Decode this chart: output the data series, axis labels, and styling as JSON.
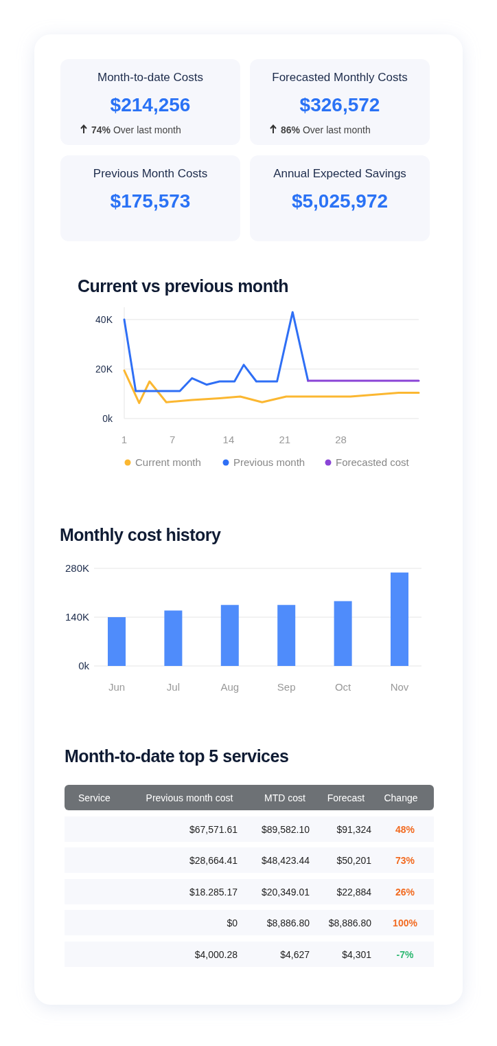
{
  "chart_data": [
    {
      "type": "other",
      "categories": [
        "Month-to-date Costs",
        "Forecasted Monthly Costs",
        "Previous Month Costs",
        "Annual Expected Savings"
      ],
      "value_labels": [
        "$214,256",
        "$326,572",
        "$175,573",
        "$5,025,972"
      ],
      "annotations": [
        "74% Over last month",
        "86% Over last month"
      ]
    },
    {
      "type": "line",
      "title": "Current vs previous month",
      "xlim": [
        1,
        37.7
      ],
      "xticks": [
        1,
        7,
        14,
        21,
        28
      ],
      "ylim": [
        0,
        45
      ],
      "yticks": [
        {
          "value": 0,
          "label": "0k"
        },
        {
          "value": 20,
          "label": "20K"
        },
        {
          "value": 40,
          "label": "40K"
        }
      ],
      "grid": "y",
      "legend": "bottom",
      "series": [
        {
          "name": "Current month",
          "color": "#fbb731",
          "x": [
            1,
            2.86,
            4.15,
            6.24,
            9.45,
            12.88,
            15.46,
            18.18,
            21.18,
            29.2,
            35.2,
            37.7
          ],
          "values": [
            19.4,
            6.3,
            15.0,
            6.6,
            7.5,
            8.2,
            8.9,
            6.6,
            8.9,
            8.9,
            10.4,
            10.4
          ]
        },
        {
          "name": "Previous month",
          "color": "#2f6ff5",
          "x": [
            1,
            2.43,
            7.93,
            9.45,
            11.25,
            12.88,
            14.74,
            15.89,
            17.46,
            20.04,
            21.98,
            23.9
          ],
          "values": [
            40.0,
            11.1,
            11.1,
            16.3,
            13.7,
            15.0,
            15.0,
            21.7,
            15.0,
            15.0,
            43.0,
            15.3
          ]
        },
        {
          "name": "Forecasted cost",
          "color": "#8a44d6",
          "x": [
            23.9,
            37.7
          ],
          "values": [
            15.3,
            15.3
          ]
        }
      ]
    },
    {
      "type": "bar",
      "title": "Monthly cost history",
      "categories": [
        "Jun",
        "Jul",
        "Aug",
        "Sep",
        "Oct",
        "Nov"
      ],
      "values": [
        140,
        159,
        175,
        175,
        186,
        268
      ],
      "color": "#4f8cfb",
      "ylim": [
        0,
        280
      ],
      "yticks": [
        {
          "value": 0,
          "label": "0k"
        },
        {
          "value": 140,
          "label": "140K"
        },
        {
          "value": 280,
          "label": "280K"
        }
      ],
      "grid": "y"
    },
    {
      "type": "other",
      "title": "Month-to-date top 5 services",
      "categories": [
        "Service",
        "Previous month cost",
        "MTD cost",
        "Forecast",
        "Change"
      ],
      "cell_labels": [
        [
          null,
          "$67,571.61",
          "$89,582.10",
          "$91,324",
          "48%"
        ],
        [
          null,
          "$28,664.41",
          "$48,423.44",
          "$50,201",
          "73%"
        ],
        [
          null,
          "$18.285.17",
          "$20,349.01",
          "$22,884",
          "26%"
        ],
        [
          null,
          "$0",
          "$8,886.80",
          "$8,886.80",
          "100%"
        ],
        [
          null,
          "$4,000.28",
          "$4,627",
          "$4,301",
          "-7%"
        ]
      ]
    }
  ]
}
